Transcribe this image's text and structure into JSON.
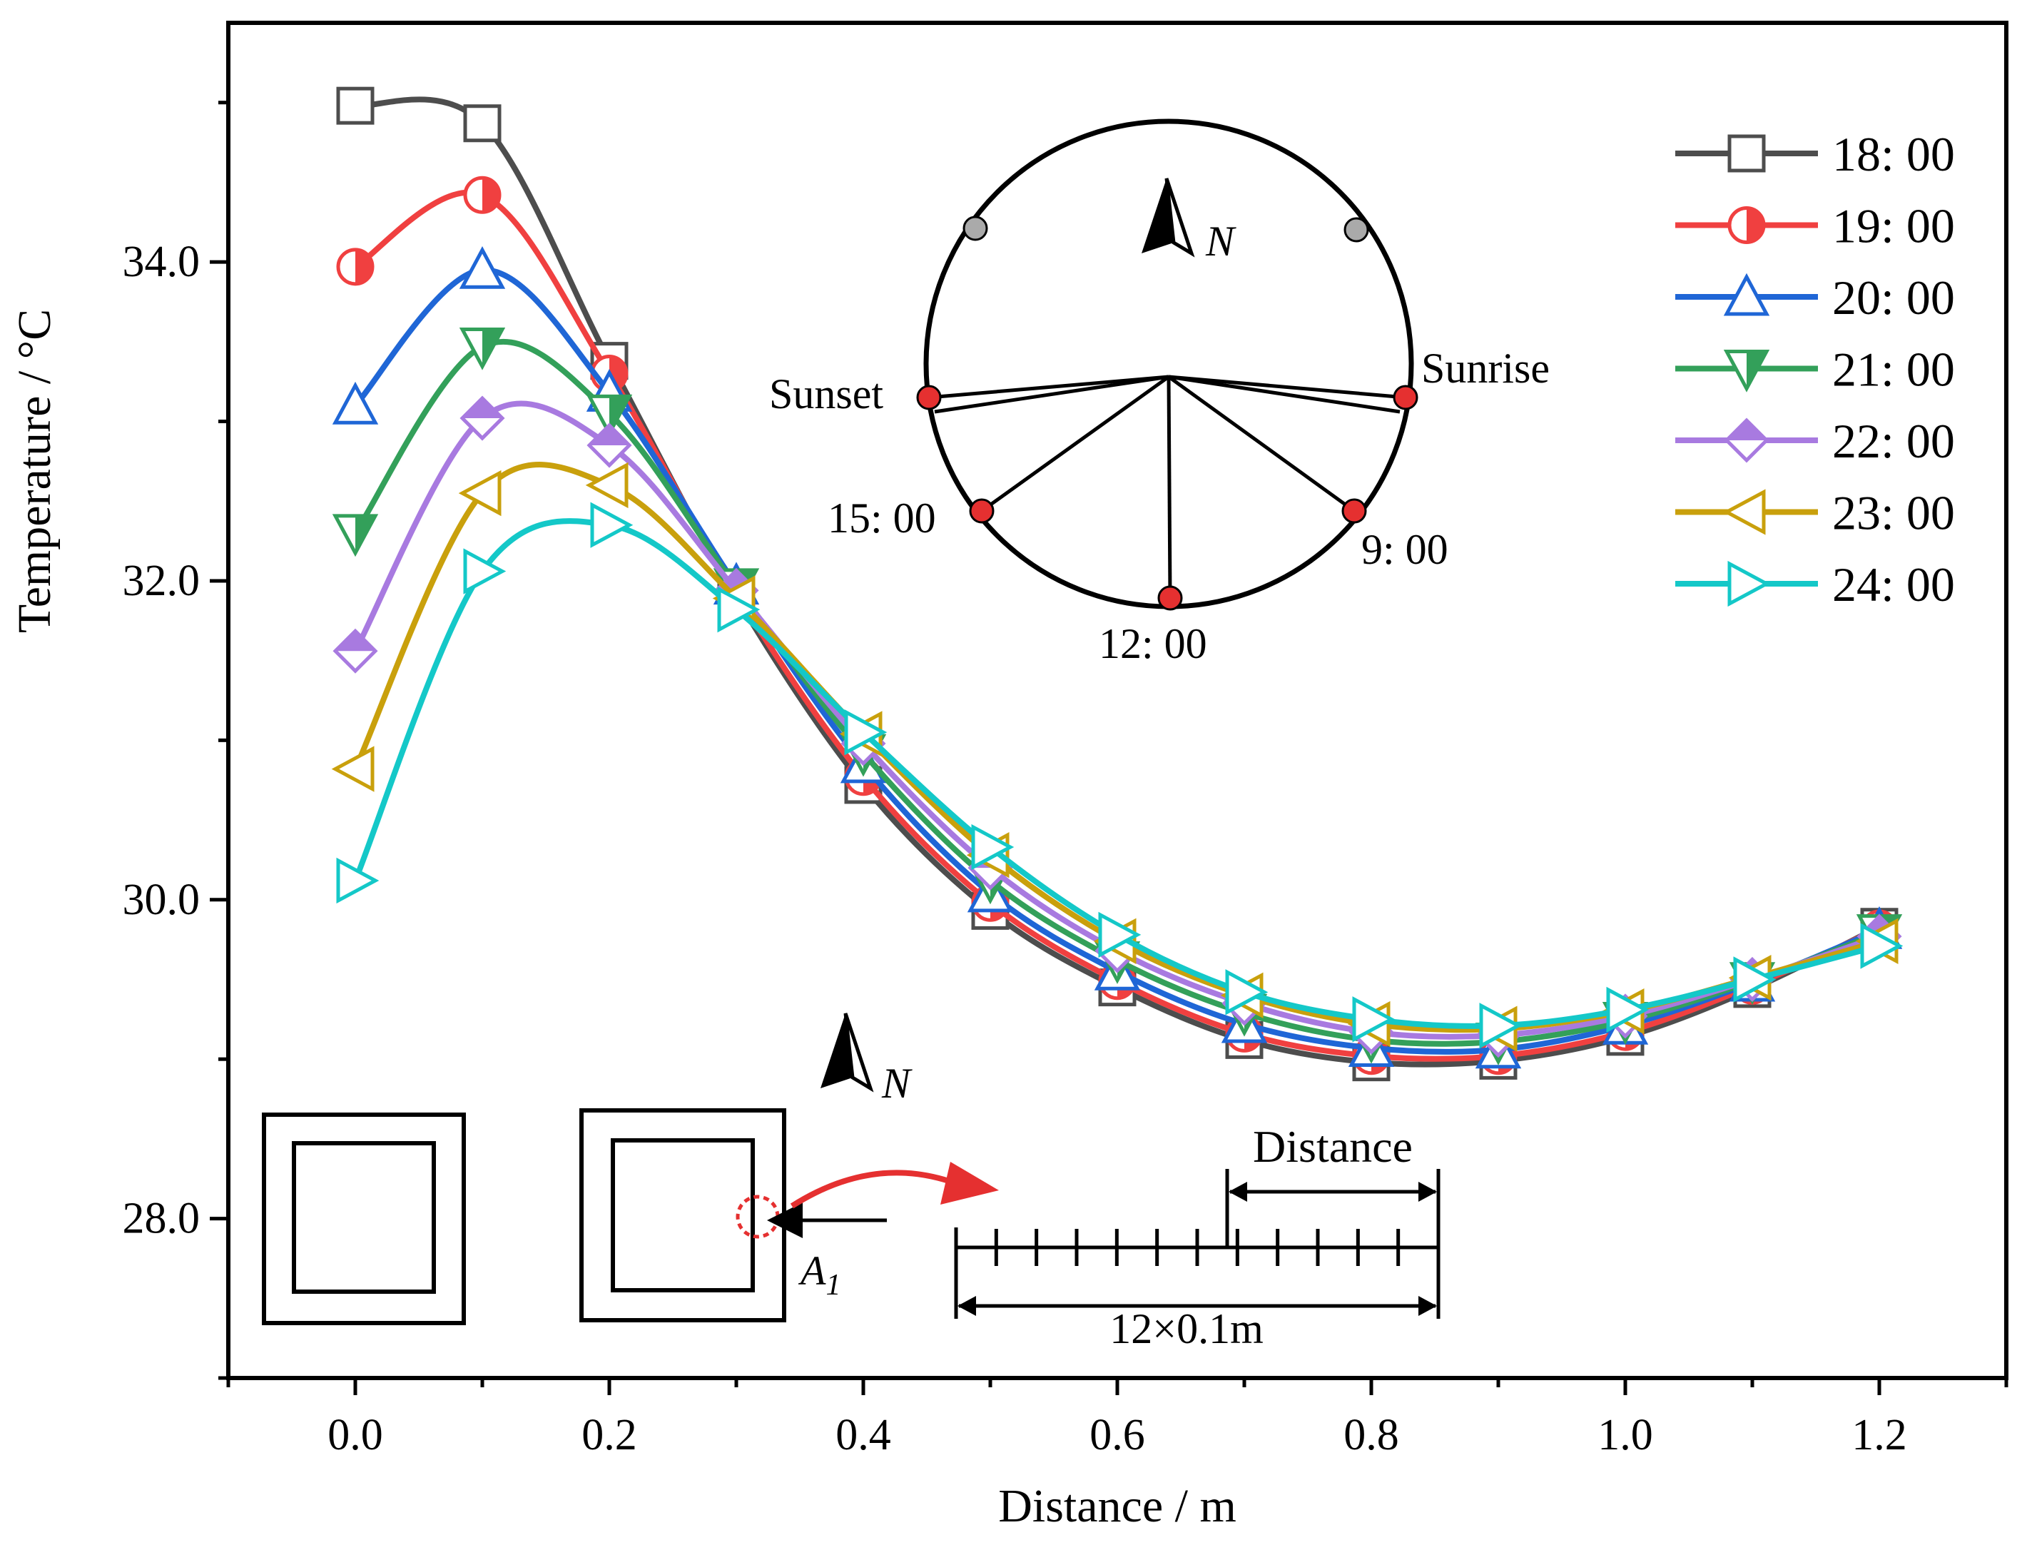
{
  "chart_data": {
    "type": "line",
    "title": "",
    "xlabel": "Distance / m",
    "ylabel": "Temperature / °C",
    "xlim": [
      -0.1,
      1.3
    ],
    "ylim": [
      27.0,
      35.5
    ],
    "x_ticks": [
      0.0,
      0.2,
      0.4,
      0.6,
      0.8,
      1.0,
      1.2
    ],
    "x_tick_labels": [
      "0.0",
      "0.2",
      "0.4",
      "0.6",
      "0.8",
      "1.0",
      "1.2"
    ],
    "y_ticks": [
      28.0,
      30.0,
      32.0,
      34.0
    ],
    "y_tick_labels": [
      "28.0",
      "30.0",
      "32.0",
      "34.0"
    ],
    "grid": false,
    "legend_position": "top-right",
    "x": [
      0.0,
      0.1,
      0.2,
      0.3,
      0.4,
      0.5,
      0.6,
      0.7,
      0.8,
      0.9,
      1.0,
      1.1,
      1.2
    ],
    "series": [
      {
        "name": "18: 00",
        "color": "#4d4d4d",
        "marker": "square",
        "values": [
          34.98,
          34.87,
          33.38,
          31.9,
          30.72,
          29.93,
          29.45,
          29.12,
          28.98,
          28.99,
          29.14,
          29.44,
          29.83
        ]
      },
      {
        "name": "19: 00",
        "color": "#f04040",
        "marker": "circle-half",
        "values": [
          33.97,
          34.42,
          33.3,
          31.92,
          30.77,
          29.98,
          29.49,
          29.16,
          29.02,
          29.02,
          29.17,
          29.46,
          29.82
        ]
      },
      {
        "name": "20: 00",
        "color": "#1f66d6",
        "marker": "triangle-up",
        "values": [
          33.1,
          33.95,
          33.18,
          31.97,
          30.85,
          30.04,
          29.55,
          29.22,
          29.07,
          29.06,
          29.21,
          29.48,
          29.81
        ]
      },
      {
        "name": "21: 00",
        "color": "#33a05a",
        "marker": "triangle-down-half",
        "values": [
          32.3,
          33.47,
          33.05,
          31.96,
          30.92,
          30.12,
          29.62,
          29.29,
          29.12,
          29.11,
          29.24,
          29.49,
          29.79
        ]
      },
      {
        "name": "22: 00",
        "color": "#a87ae0",
        "marker": "diamond-half",
        "values": [
          31.56,
          33.02,
          32.85,
          31.94,
          30.98,
          30.2,
          29.68,
          29.35,
          29.17,
          29.15,
          29.27,
          29.5,
          29.77
        ]
      },
      {
        "name": "23: 00",
        "color": "#c9a00c",
        "marker": "triangle-left",
        "values": [
          30.82,
          32.55,
          32.6,
          31.89,
          31.04,
          30.28,
          29.74,
          29.4,
          29.22,
          29.19,
          29.3,
          29.51,
          29.74
        ]
      },
      {
        "name": "24: 00",
        "color": "#14c8c8",
        "marker": "triangle-right",
        "values": [
          30.12,
          32.06,
          32.35,
          31.82,
          31.05,
          30.33,
          29.78,
          29.42,
          29.25,
          29.21,
          29.31,
          29.5,
          29.71
        ]
      }
    ],
    "inset_compass": {
      "north_label": "N",
      "labels": {
        "sunset": "Sunset",
        "sunrise": "Sunrise",
        "t15": "15: 00",
        "t9": "9: 00",
        "t12": "12: 00"
      },
      "marker_color": "#e53030",
      "grey_marker_color": "#aaaaaa"
    },
    "inset_section": {
      "north_label": "N",
      "point_label": "A",
      "point_subscript": "1",
      "distance_label": "Distance",
      "span_label": "12×0.1m",
      "segments": 12,
      "arrow_color": "#e53030"
    }
  }
}
